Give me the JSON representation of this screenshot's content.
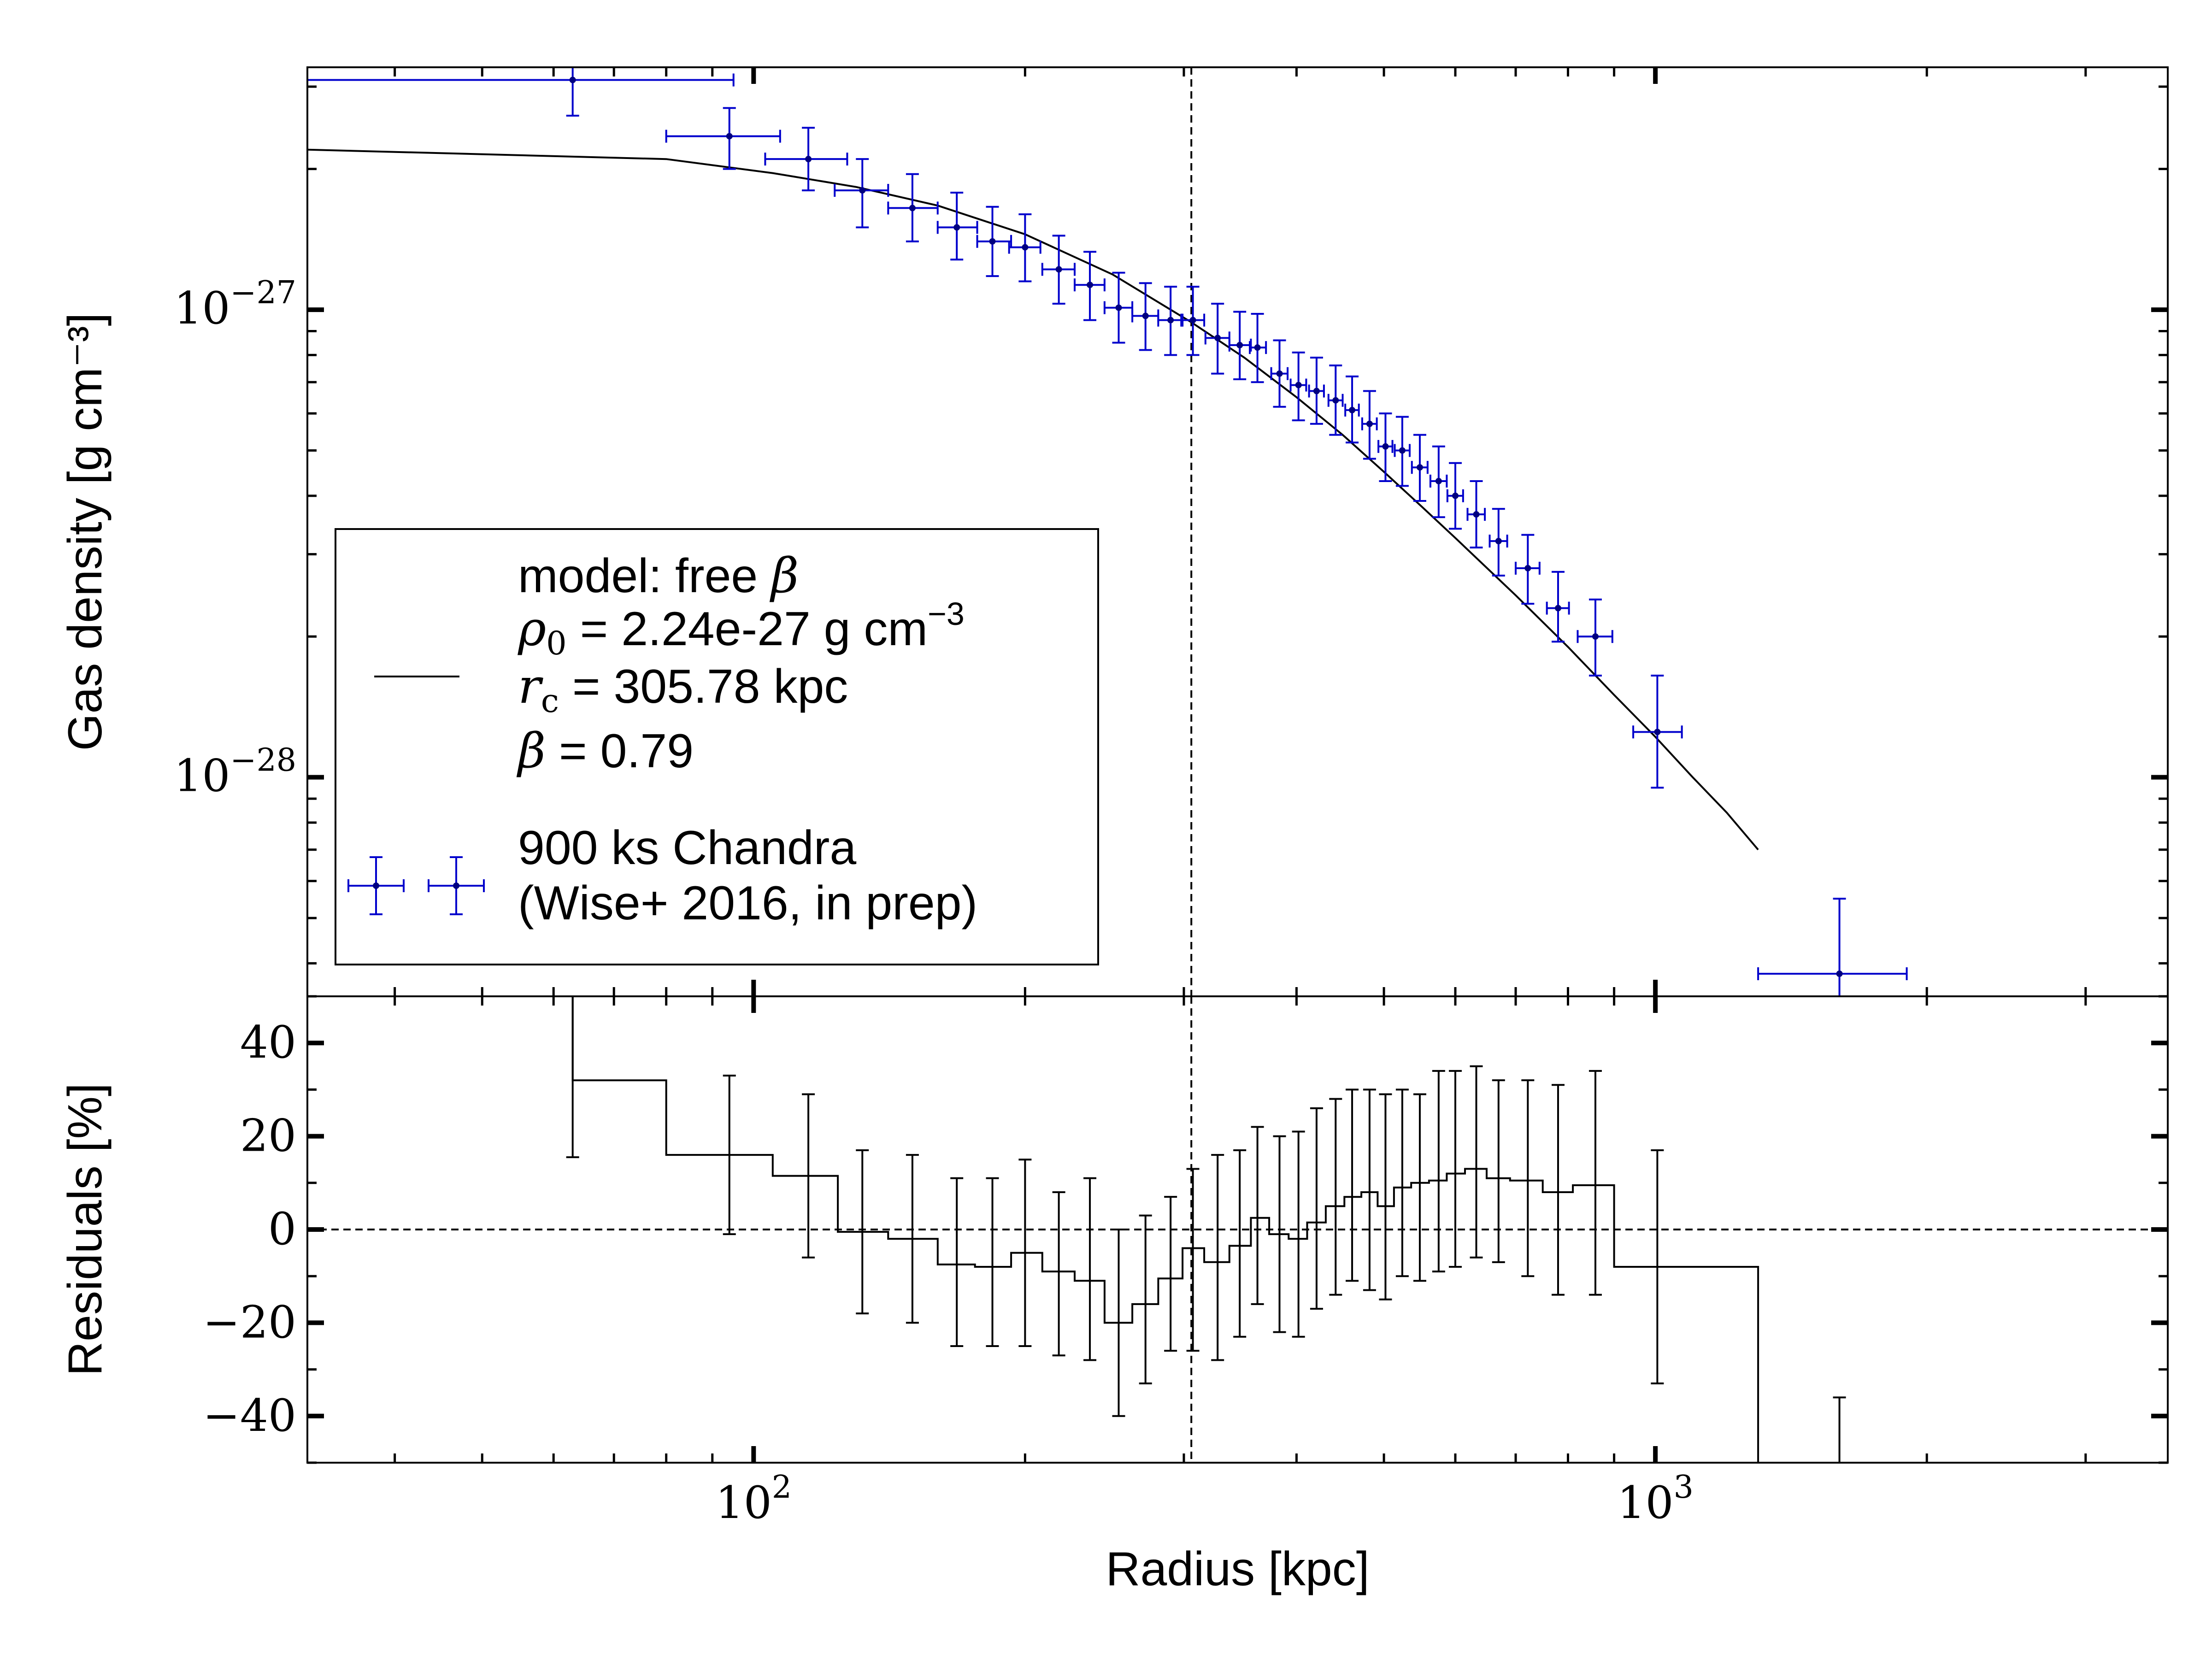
{
  "chart_data": [
    {
      "type": "scatter",
      "panel": "top",
      "xlabel": "Radius [kpc]",
      "ylabel": "Gas density [g cm⁻³]",
      "x_scale": "log",
      "y_scale": "log",
      "xlim": [
        32,
        3700
      ],
      "ylim": [
        3.4e-29,
        3.3e-27
      ],
      "x_ticks": [
        {
          "value": 100,
          "base": "10",
          "exp": "2"
        },
        {
          "value": 1000,
          "base": "10",
          "exp": "3"
        }
      ],
      "y_ticks": [
        {
          "value": 1e-27,
          "base": "10",
          "exp": "−27"
        },
        {
          "value": 1e-28,
          "base": "10",
          "exp": "−28"
        }
      ],
      "vline": 305.78,
      "colors": {
        "data": "#0000cc",
        "model": "#000000"
      },
      "series": [
        {
          "type": "errorbar",
          "name_lines": [
            "900 ks Chandra",
            "(Wise+ 2016, in prep)"
          ],
          "points": [
            {
              "x": 63,
              "xlo": 32,
              "xhi": 95,
              "y": 3.1e-27,
              "ylo": 2.6e-27,
              "yhi": 3.7e-27
            },
            {
              "x": 94,
              "xlo": 80,
              "xhi": 107,
              "y": 2.35e-27,
              "ylo": 2e-27,
              "yhi": 2.7e-27
            },
            {
              "x": 115,
              "xlo": 103,
              "xhi": 127,
              "y": 2.1e-27,
              "ylo": 1.8e-27,
              "yhi": 2.45e-27
            },
            {
              "x": 132,
              "xlo": 123,
              "xhi": 141,
              "y": 1.8e-27,
              "ylo": 1.5e-27,
              "yhi": 2.1e-27
            },
            {
              "x": 150,
              "xlo": 141,
              "xhi": 160,
              "y": 1.65e-27,
              "ylo": 1.4e-27,
              "yhi": 1.95e-27
            },
            {
              "x": 168,
              "xlo": 160,
              "xhi": 177,
              "y": 1.5e-27,
              "ylo": 1.28e-27,
              "yhi": 1.78e-27
            },
            {
              "x": 184,
              "xlo": 177,
              "xhi": 193,
              "y": 1.4e-27,
              "ylo": 1.18e-27,
              "yhi": 1.66e-27
            },
            {
              "x": 200,
              "xlo": 192,
              "xhi": 208,
              "y": 1.36e-27,
              "ylo": 1.15e-27,
              "yhi": 1.6e-27
            },
            {
              "x": 218,
              "xlo": 209,
              "xhi": 227,
              "y": 1.22e-27,
              "ylo": 1.03e-27,
              "yhi": 1.44e-27
            },
            {
              "x": 236,
              "xlo": 227,
              "xhi": 245,
              "y": 1.13e-27,
              "ylo": 9.5e-28,
              "yhi": 1.33e-27
            },
            {
              "x": 254,
              "xlo": 245,
              "xhi": 263,
              "y": 1.01e-27,
              "ylo": 8.5e-28,
              "yhi": 1.2e-27
            },
            {
              "x": 272,
              "xlo": 263,
              "xhi": 281,
              "y": 9.7e-28,
              "ylo": 8.2e-28,
              "yhi": 1.14e-27
            },
            {
              "x": 290,
              "xlo": 281,
              "xhi": 299,
              "y": 9.5e-28,
              "ylo": 8e-28,
              "yhi": 1.12e-27
            },
            {
              "x": 307,
              "xlo": 298,
              "xhi": 316,
              "y": 9.5e-28,
              "ylo": 8e-28,
              "yhi": 1.12e-27
            },
            {
              "x": 327,
              "xlo": 317,
              "xhi": 337,
              "y": 8.7e-28,
              "ylo": 7.3e-28,
              "yhi": 1.03e-27
            },
            {
              "x": 346,
              "xlo": 337,
              "xhi": 356,
              "y": 8.4e-28,
              "ylo": 7.1e-28,
              "yhi": 9.9e-28
            },
            {
              "x": 362,
              "xlo": 355,
              "xhi": 370,
              "y": 8.3e-28,
              "ylo": 7e-28,
              "yhi": 9.8e-28
            },
            {
              "x": 383,
              "xlo": 375,
              "xhi": 391,
              "y": 7.3e-28,
              "ylo": 6.2e-28,
              "yhi": 8.6e-28
            },
            {
              "x": 402,
              "xlo": 394,
              "xhi": 410,
              "y": 6.9e-28,
              "ylo": 5.8e-28,
              "yhi": 8.1e-28
            },
            {
              "x": 421,
              "xlo": 413,
              "xhi": 429,
              "y": 6.7e-28,
              "ylo": 5.7e-28,
              "yhi": 7.9e-28
            },
            {
              "x": 442,
              "xlo": 434,
              "xhi": 450,
              "y": 6.4e-28,
              "ylo": 5.4e-28,
              "yhi": 7.6e-28
            },
            {
              "x": 461,
              "xlo": 453,
              "xhi": 469,
              "y": 6.1e-28,
              "ylo": 5.2e-28,
              "yhi": 7.2e-28
            },
            {
              "x": 482,
              "xlo": 473,
              "xhi": 491,
              "y": 5.7e-28,
              "ylo": 4.8e-28,
              "yhi": 6.7e-28
            },
            {
              "x": 502,
              "xlo": 493,
              "xhi": 511,
              "y": 5.1e-28,
              "ylo": 4.3e-28,
              "yhi": 6e-28
            },
            {
              "x": 524,
              "xlo": 514,
              "xhi": 534,
              "y": 5e-28,
              "ylo": 4.2e-28,
              "yhi": 5.9e-28
            },
            {
              "x": 548,
              "xlo": 537,
              "xhi": 559,
              "y": 4.6e-28,
              "ylo": 3.9e-28,
              "yhi": 5.4e-28
            },
            {
              "x": 575,
              "xlo": 563,
              "xhi": 587,
              "y": 4.3e-28,
              "ylo": 3.6e-28,
              "yhi": 5.1e-28
            },
            {
              "x": 600,
              "xlo": 588,
              "xhi": 612,
              "y": 4e-28,
              "ylo": 3.4e-28,
              "yhi": 4.7e-28
            },
            {
              "x": 633,
              "xlo": 619,
              "xhi": 647,
              "y": 3.65e-28,
              "ylo": 3.1e-28,
              "yhi": 4.3e-28
            },
            {
              "x": 670,
              "xlo": 655,
              "xhi": 685,
              "y": 3.2e-28,
              "ylo": 2.7e-28,
              "yhi": 3.75e-28
            },
            {
              "x": 722,
              "xlo": 700,
              "xhi": 744,
              "y": 2.8e-28,
              "ylo": 2.35e-28,
              "yhi": 3.3e-28
            },
            {
              "x": 780,
              "xlo": 758,
              "xhi": 802,
              "y": 2.3e-28,
              "ylo": 1.95e-28,
              "yhi": 2.75e-28
            },
            {
              "x": 858,
              "xlo": 820,
              "xhi": 896,
              "y": 2e-28,
              "ylo": 1.65e-28,
              "yhi": 2.4e-28
            },
            {
              "x": 1005,
              "xlo": 945,
              "xhi": 1070,
              "y": 1.25e-28,
              "ylo": 9.5e-29,
              "yhi": 1.65e-28
            },
            {
              "x": 1600,
              "xlo": 1300,
              "xhi": 1900,
              "y": 3.8e-29,
              "ylo": 3.4e-29,
              "yhi": 5.5e-29
            }
          ]
        },
        {
          "type": "line",
          "name_lines": [
            "model: free β",
            "ρ₀ = 2.24e-27 g cm⁻³",
            "r_c = 305.78 kpc",
            "β = 0.79"
          ],
          "x": [
            32,
            80,
            105,
            130,
            160,
            200,
            250,
            305.78,
            350,
            400,
            450,
            500,
            550,
            600,
            700,
            800,
            900,
            1000,
            1100,
            1200,
            1300
          ],
          "y": [
            2.2e-27,
            2.1e-27,
            1.96e-27,
            1.83e-27,
            1.67e-27,
            1.45e-27,
            1.19e-27,
            9.4e-28,
            7.9e-28,
            6.5e-28,
            5.4e-28,
            4.5e-28,
            3.8e-28,
            3.25e-28,
            2.45e-28,
            1.9e-28,
            1.5e-28,
            1.22e-28,
            1e-28,
            8.4e-29,
            7e-29
          ]
        }
      ],
      "legend": {
        "position": "lower-left",
        "entries": [
          {
            "marker": "line",
            "lines": [
              {
                "pre": "",
                "sym": "model: free ",
                "post": "",
                "var": "β",
                "sub": ""
              },
              {
                "var": "ρ",
                "sub": "0",
                "text": "  = 2.24e-27 g cm",
                "sup": "−3"
              },
              {
                "var": "r",
                "sub": "c",
                "text": "  = 305.78 kpc",
                "sup": ""
              },
              {
                "var": "β",
                "sub": "",
                "text": " = 0.79",
                "sup": ""
              }
            ]
          },
          {
            "marker": "errorbar",
            "lines": [
              "900 ks Chandra",
              "(Wise+ 2016, in prep)"
            ]
          }
        ]
      }
    },
    {
      "type": "line",
      "panel": "bottom",
      "xlabel": "Radius [kpc]",
      "ylabel": "Residuals [%]",
      "x_scale": "log",
      "xlim": [
        32,
        3700
      ],
      "ylim": [
        -50,
        50
      ],
      "y_ticks": [
        {
          "value": 40,
          "label": "40"
        },
        {
          "value": 20,
          "label": "20"
        },
        {
          "value": 0,
          "label": "0"
        },
        {
          "value": -20,
          "label": "−20"
        },
        {
          "value": -40,
          "label": "−40"
        }
      ],
      "hline": 0,
      "vline": 305.78,
      "steps": [
        {
          "xlo": 63,
          "xhi": 80,
          "y": 32
        },
        {
          "xlo": 80,
          "xhi": 105,
          "y": 16
        },
        {
          "xlo": 105,
          "xhi": 124,
          "y": 11.5
        },
        {
          "xlo": 124,
          "xhi": 141,
          "y": -0.5
        },
        {
          "xlo": 141,
          "xhi": 160,
          "y": -2
        },
        {
          "xlo": 160,
          "xhi": 176,
          "y": -7.5
        },
        {
          "xlo": 176,
          "xhi": 193,
          "y": -8
        },
        {
          "xlo": 193,
          "xhi": 209,
          "y": -5
        },
        {
          "xlo": 209,
          "xhi": 227,
          "y": -9
        },
        {
          "xlo": 227,
          "xhi": 245,
          "y": -11
        },
        {
          "xlo": 245,
          "xhi": 263,
          "y": -20
        },
        {
          "xlo": 263,
          "xhi": 281,
          "y": -16
        },
        {
          "xlo": 281,
          "xhi": 299,
          "y": -10.5
        },
        {
          "xlo": 299,
          "xhi": 316,
          "y": -4
        },
        {
          "xlo": 316,
          "xhi": 337,
          "y": -7
        },
        {
          "xlo": 337,
          "xhi": 356,
          "y": -3.5
        },
        {
          "xlo": 356,
          "xhi": 373,
          "y": 2.5
        },
        {
          "xlo": 373,
          "xhi": 392,
          "y": -1
        },
        {
          "xlo": 392,
          "xhi": 411,
          "y": -2
        },
        {
          "xlo": 411,
          "xhi": 431,
          "y": 1.5
        },
        {
          "xlo": 431,
          "xhi": 452,
          "y": 5
        },
        {
          "xlo": 452,
          "xhi": 472,
          "y": 7
        },
        {
          "xlo": 472,
          "xhi": 492,
          "y": 8
        },
        {
          "xlo": 492,
          "xhi": 513,
          "y": 5
        },
        {
          "xlo": 513,
          "xhi": 536,
          "y": 9
        },
        {
          "xlo": 536,
          "xhi": 561,
          "y": 10
        },
        {
          "xlo": 561,
          "xhi": 587,
          "y": 10.5
        },
        {
          "xlo": 587,
          "xhi": 615,
          "y": 12
        },
        {
          "xlo": 615,
          "xhi": 650,
          "y": 13
        },
        {
          "xlo": 650,
          "xhi": 690,
          "y": 11
        },
        {
          "xlo": 690,
          "xhi": 750,
          "y": 10.5
        },
        {
          "xlo": 750,
          "xhi": 810,
          "y": 8
        },
        {
          "xlo": 810,
          "xhi": 900,
          "y": 9.5
        },
        {
          "xlo": 900,
          "xhi": 1300,
          "y": -8
        },
        {
          "xlo": 1300,
          "xhi": 1300,
          "y": -52
        }
      ],
      "errorbars": [
        {
          "x": 63,
          "ylo": 15.5,
          "yhi": 51
        },
        {
          "x": 94,
          "ylo": -1,
          "yhi": 33
        },
        {
          "x": 115,
          "ylo": -6,
          "yhi": 29
        },
        {
          "x": 132,
          "ylo": -18,
          "yhi": 17
        },
        {
          "x": 150,
          "ylo": -20,
          "yhi": 16
        },
        {
          "x": 168,
          "ylo": -25,
          "yhi": 11
        },
        {
          "x": 184,
          "ylo": -25,
          "yhi": 11
        },
        {
          "x": 200,
          "ylo": -25,
          "yhi": 15
        },
        {
          "x": 218,
          "ylo": -27,
          "yhi": 8
        },
        {
          "x": 236,
          "ylo": -28,
          "yhi": 11
        },
        {
          "x": 254,
          "ylo": -40,
          "yhi": 0
        },
        {
          "x": 272,
          "ylo": -33,
          "yhi": 3
        },
        {
          "x": 290,
          "ylo": -26,
          "yhi": 7
        },
        {
          "x": 307,
          "ylo": -26,
          "yhi": 13
        },
        {
          "x": 327,
          "ylo": -28,
          "yhi": 16
        },
        {
          "x": 346,
          "ylo": -23,
          "yhi": 17
        },
        {
          "x": 362,
          "ylo": -16,
          "yhi": 22
        },
        {
          "x": 383,
          "ylo": -22,
          "yhi": 20
        },
        {
          "x": 402,
          "ylo": -23,
          "yhi": 21
        },
        {
          "x": 421,
          "ylo": -17,
          "yhi": 26
        },
        {
          "x": 442,
          "ylo": -14,
          "yhi": 28
        },
        {
          "x": 461,
          "ylo": -11,
          "yhi": 30
        },
        {
          "x": 482,
          "ylo": -13,
          "yhi": 30
        },
        {
          "x": 502,
          "ylo": -15,
          "yhi": 29
        },
        {
          "x": 524,
          "ylo": -10,
          "yhi": 30
        },
        {
          "x": 548,
          "ylo": -11,
          "yhi": 29
        },
        {
          "x": 575,
          "ylo": -9,
          "yhi": 34
        },
        {
          "x": 600,
          "ylo": -8,
          "yhi": 34
        },
        {
          "x": 633,
          "ylo": -6,
          "yhi": 35
        },
        {
          "x": 670,
          "ylo": -7,
          "yhi": 32
        },
        {
          "x": 722,
          "ylo": -10,
          "yhi": 32
        },
        {
          "x": 780,
          "ylo": -14,
          "yhi": 31
        },
        {
          "x": 858,
          "ylo": -14,
          "yhi": 34
        },
        {
          "x": 1005,
          "ylo": -33,
          "yhi": 17
        },
        {
          "x": 1600,
          "ylo": -52,
          "yhi": -36
        }
      ]
    }
  ]
}
